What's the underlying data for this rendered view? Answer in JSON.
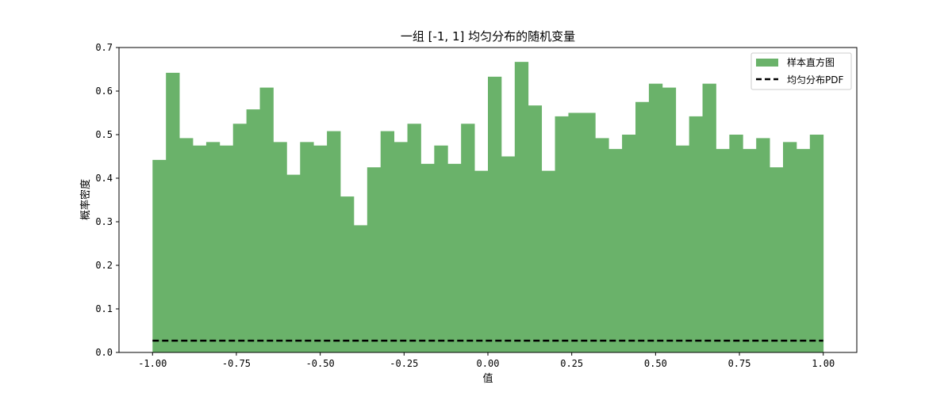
{
  "chart_data": {
    "type": "bar",
    "title": "一组 [-1, 1] 均匀分布的随机变量",
    "xlabel": "值",
    "ylabel": "概率密度",
    "xlim": [
      -1.1,
      1.1
    ],
    "ylim": [
      0,
      0.7
    ],
    "xticks": [
      "-1.00",
      "-0.75",
      "-0.50",
      "-0.25",
      "0.00",
      "0.25",
      "0.50",
      "0.75",
      "1.00"
    ],
    "yticks": [
      "0.0",
      "0.1",
      "0.2",
      "0.3",
      "0.4",
      "0.5",
      "0.6",
      "0.7"
    ],
    "legend_position": "top-right",
    "series": [
      {
        "name": "样本直方图",
        "kind": "histogram",
        "color": "#6ab26a",
        "bin_start": -1.0,
        "bin_end": 1.0,
        "bins": 50,
        "values": [
          0.442,
          0.642,
          0.492,
          0.475,
          0.483,
          0.475,
          0.525,
          0.558,
          0.608,
          0.483,
          0.408,
          0.483,
          0.475,
          0.508,
          0.358,
          0.292,
          0.425,
          0.508,
          0.483,
          0.525,
          0.433,
          0.475,
          0.433,
          0.525,
          0.417,
          0.633,
          0.45,
          0.667,
          0.567,
          0.417,
          0.542,
          0.55,
          0.55,
          0.492,
          0.467,
          0.5,
          0.575,
          0.617,
          0.608,
          0.475,
          0.542,
          0.617,
          0.467,
          0.5,
          0.467,
          0.492,
          0.425,
          0.483,
          0.467,
          0.5
        ]
      },
      {
        "name": "均匀分布PDF",
        "kind": "line",
        "color": "#000000",
        "x": [
          -1.0,
          1.0
        ],
        "y": [
          0.027,
          0.027
        ]
      }
    ]
  }
}
